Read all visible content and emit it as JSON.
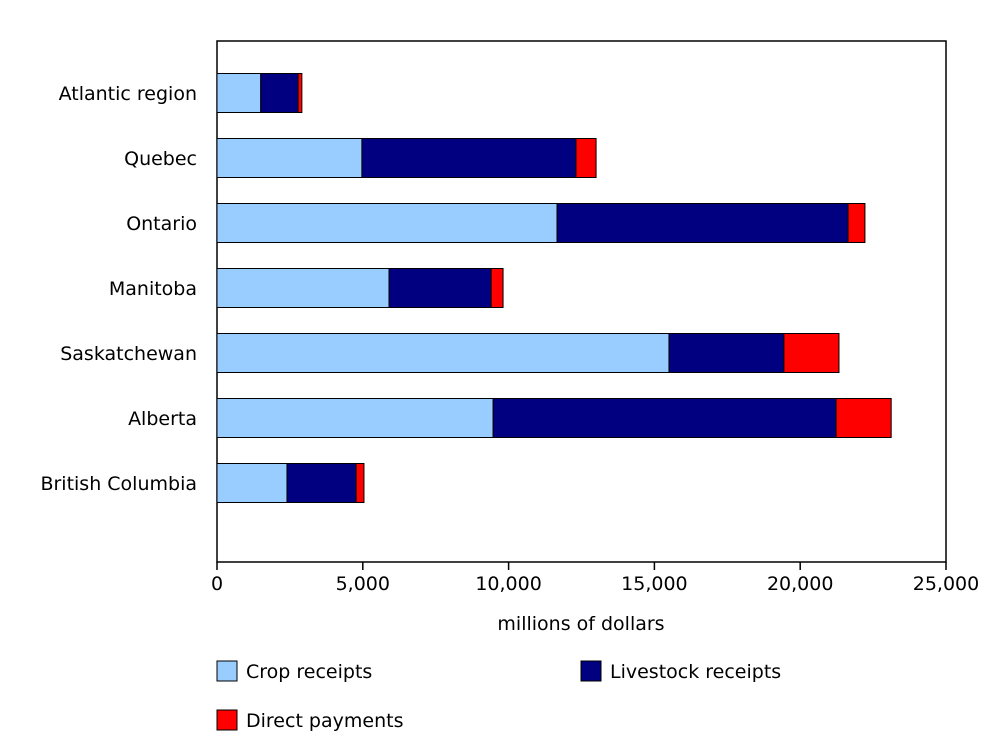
{
  "chart_data": {
    "type": "bar",
    "orientation": "horizontal",
    "stacked": true,
    "title": "",
    "xlabel": "millions of dollars",
    "ylabel": "",
    "xlim": [
      0,
      25000
    ],
    "xticks": [
      0,
      5000,
      10000,
      15000,
      20000,
      25000
    ],
    "xtick_labels": [
      "0",
      "5,000",
      "10,000",
      "15,000",
      "20,000",
      "25,000"
    ],
    "grid": false,
    "legend_placement": "bottom",
    "categories": [
      "Atlantic region",
      "Quebec",
      "Ontario",
      "Manitoba",
      "Saskatchewan",
      "Alberta",
      "British Columbia"
    ],
    "series": [
      {
        "name": "Crop receipts",
        "color": "#99ccff",
        "values": [
          1500,
          4970,
          11660,
          5900,
          15500,
          9470,
          2400
        ]
      },
      {
        "name": "Livestock receipts",
        "color": "#000080",
        "values": [
          1280,
          7340,
          9980,
          3500,
          3940,
          11760,
          2370
        ]
      },
      {
        "name": "Direct payments",
        "color": "#ff0000",
        "values": [
          130,
          690,
          580,
          410,
          1890,
          1890,
          270
        ]
      }
    ]
  }
}
